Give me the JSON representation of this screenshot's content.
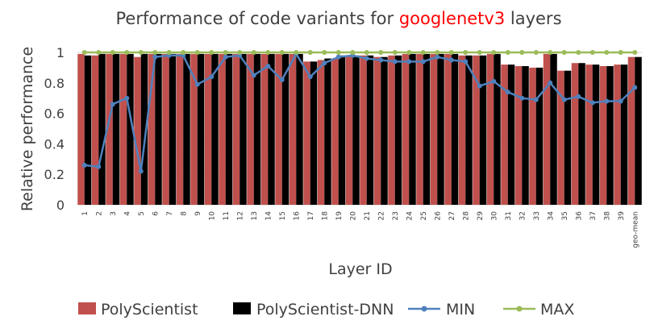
{
  "chart_data": {
    "type": "bar",
    "title_prefix": "Performance of code variants for ",
    "title_highlight": "googlenetv3",
    "title_suffix": " layers",
    "xlabel": "Layer ID",
    "ylabel": "Relative performance",
    "ylim": [
      0,
      1
    ],
    "yticks": [
      "0",
      "0.2",
      "0.4",
      "0.6",
      "0.8",
      "1"
    ],
    "categories": [
      "1",
      "2",
      "3",
      "4",
      "5",
      "6",
      "7",
      "8",
      "9",
      "10",
      "11",
      "12",
      "13",
      "14",
      "15",
      "16",
      "17",
      "18",
      "19",
      "20",
      "21",
      "22",
      "23",
      "24",
      "25",
      "26",
      "27",
      "28",
      "29",
      "30",
      "31",
      "32",
      "33",
      "34",
      "35",
      "36",
      "37",
      "38",
      "39",
      "geo-mean"
    ],
    "series": [
      {
        "name": "PolyScientist",
        "kind": "bar",
        "color": "#C0504D",
        "values": [
          0.99,
          0.98,
          0.99,
          0.99,
          0.97,
          0.99,
          0.99,
          0.99,
          0.99,
          0.99,
          0.99,
          0.99,
          0.99,
          0.99,
          0.99,
          0.99,
          0.94,
          0.95,
          0.96,
          0.98,
          0.98,
          0.97,
          0.98,
          0.99,
          0.99,
          0.99,
          0.99,
          0.98,
          0.98,
          0.99,
          0.92,
          0.91,
          0.9,
          0.99,
          0.88,
          0.93,
          0.92,
          0.91,
          0.92,
          0.97
        ]
      },
      {
        "name": "PolyScientist-DNN",
        "kind": "bar",
        "color": "#000000",
        "values": [
          0.98,
          0.99,
          0.99,
          0.99,
          0.99,
          0.99,
          0.99,
          0.99,
          0.99,
          0.99,
          0.99,
          0.99,
          0.99,
          0.99,
          0.99,
          0.99,
          0.94,
          0.96,
          0.98,
          0.98,
          0.98,
          0.97,
          0.98,
          0.99,
          0.99,
          0.99,
          0.99,
          0.98,
          0.98,
          0.99,
          0.92,
          0.91,
          0.9,
          0.99,
          0.88,
          0.93,
          0.92,
          0.91,
          0.92,
          0.97
        ]
      },
      {
        "name": "MIN",
        "kind": "line",
        "color": "#4F81BD",
        "values": [
          0.26,
          0.25,
          0.66,
          0.7,
          0.22,
          0.97,
          0.98,
          0.98,
          0.79,
          0.84,
          0.97,
          0.98,
          0.85,
          0.91,
          0.82,
          0.99,
          0.84,
          0.93,
          0.97,
          0.98,
          0.96,
          0.95,
          0.94,
          0.94,
          0.94,
          0.97,
          0.95,
          0.94,
          0.78,
          0.81,
          0.74,
          0.7,
          0.69,
          0.8,
          0.69,
          0.71,
          0.67,
          0.68,
          0.68,
          0.77
        ]
      },
      {
        "name": "MAX",
        "kind": "line",
        "color": "#9BBB59",
        "values": [
          1,
          1,
          1,
          1,
          1,
          1,
          1,
          1,
          1,
          1,
          1,
          1,
          1,
          1,
          1,
          1,
          1,
          1,
          1,
          1,
          1,
          1,
          1,
          1,
          1,
          1,
          1,
          1,
          1,
          1,
          1,
          1,
          1,
          1,
          1,
          1,
          1,
          1,
          1,
          1
        ]
      }
    ],
    "legend_position": "bottom",
    "grid": true
  }
}
